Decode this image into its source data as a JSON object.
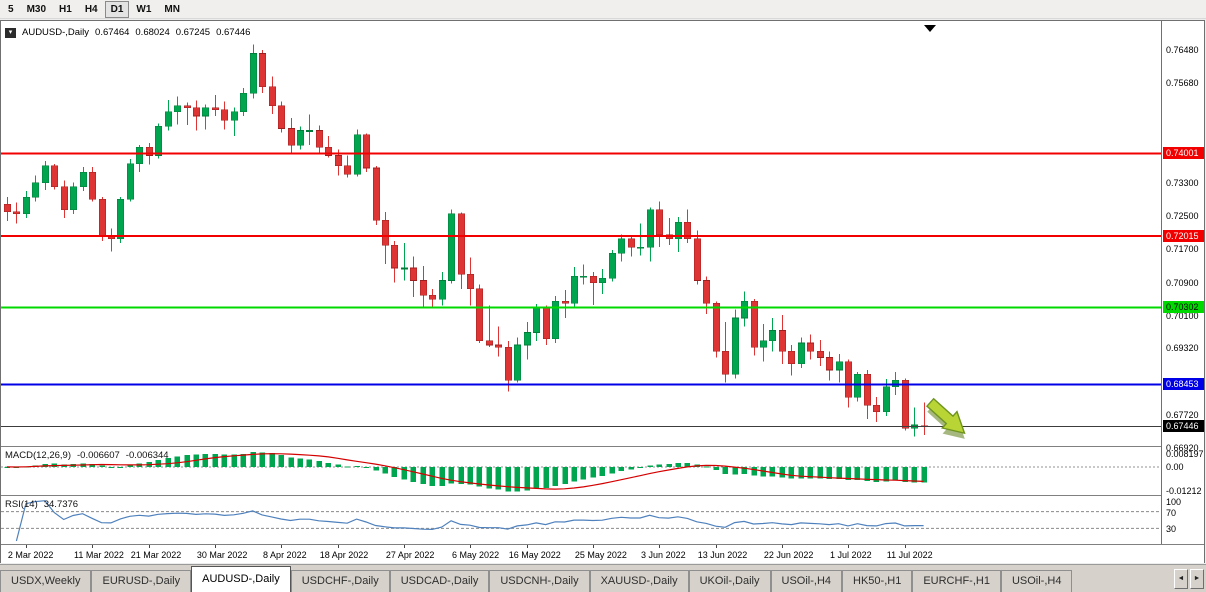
{
  "toolbar": {
    "timeframes": [
      "5",
      "M30",
      "H1",
      "H4",
      "D1",
      "W1",
      "MN"
    ],
    "active_timeframe": "D1"
  },
  "chart_header": {
    "dropdown_icon": "▾",
    "symbol_label": "AUDUSD-,Daily",
    "ohlc": [
      "0.67464",
      "0.68024",
      "0.67245",
      "0.67446"
    ]
  },
  "chart_data": {
    "type": "candlestick",
    "symbol": "AUDUSD",
    "timeframe": "Daily",
    "title": "AUDUSD-,Daily",
    "ylim": [
      0.67,
      0.7718
    ],
    "price_axis_ticks": [
      "0.76480",
      "0.75680",
      "0.73300",
      "0.72500",
      "0.71700",
      "0.70900",
      "0.70100",
      "0.69320",
      "0.67720",
      "0.66920"
    ],
    "hlines": [
      {
        "price": 0.74001,
        "label": "0.74001",
        "color": "#f20000",
        "text_color": "#ffffff"
      },
      {
        "price": 0.72015,
        "label": "0.72015",
        "color": "#f20000",
        "text_color": "#ffffff"
      },
      {
        "price": 0.70302,
        "label": "0.70302",
        "color": "#00d900",
        "text_color": "#000000"
      },
      {
        "price": 0.68453,
        "label": "0.68453",
        "color": "#0000e6",
        "text_color": "#ffffff"
      }
    ],
    "current_price": {
      "value": 0.67446,
      "label": "0.67446",
      "color": "#000000"
    },
    "colors": {
      "up": "#00a64f",
      "up_border": "#027a3a",
      "down": "#df3434",
      "down_border": "#9c1f1f"
    },
    "annotations": [
      {
        "type": "arrow",
        "direction": "down-right",
        "color": "#b8d435",
        "outline": "#6f9420",
        "near_price": 0.678
      }
    ],
    "date_labels": [
      {
        "label": "2 Mar 2022",
        "i": 2
      },
      {
        "label": "11 Mar 2022",
        "i": 9
      },
      {
        "label": "21 Mar 2022",
        "i": 15
      },
      {
        "label": "30 Mar 2022",
        "i": 22
      },
      {
        "label": "8 Apr 2022",
        "i": 29
      },
      {
        "label": "18 Apr 2022",
        "i": 35
      },
      {
        "label": "27 Apr 2022",
        "i": 42
      },
      {
        "label": "6 May 2022",
        "i": 49
      },
      {
        "label": "16 May 2022",
        "i": 55
      },
      {
        "label": "25 May 2022",
        "i": 62
      },
      {
        "label": "3 Jun 2022",
        "i": 69
      },
      {
        "label": "13 Jun 2022",
        "i": 75
      },
      {
        "label": "22 Jun 2022",
        "i": 82
      },
      {
        "label": "1 Jul 2022",
        "i": 89
      },
      {
        "label": "11 Jul 2022",
        "i": 95
      }
    ],
    "candles": [
      [
        0.7278,
        0.7295,
        0.7238,
        0.726
      ],
      [
        0.726,
        0.7282,
        0.7232,
        0.7255
      ],
      [
        0.7255,
        0.731,
        0.7245,
        0.7295
      ],
      [
        0.7295,
        0.7347,
        0.7285,
        0.733
      ],
      [
        0.733,
        0.7382,
        0.7312,
        0.737
      ],
      [
        0.737,
        0.7375,
        0.7313,
        0.732
      ],
      [
        0.732,
        0.7335,
        0.7245,
        0.7265
      ],
      [
        0.7265,
        0.733,
        0.7255,
        0.732
      ],
      [
        0.732,
        0.7368,
        0.731,
        0.7355
      ],
      [
        0.7355,
        0.7367,
        0.7285,
        0.729
      ],
      [
        0.729,
        0.7295,
        0.719,
        0.72
      ],
      [
        0.72,
        0.722,
        0.7165,
        0.7195
      ],
      [
        0.7195,
        0.7295,
        0.7185,
        0.729
      ],
      [
        0.729,
        0.7387,
        0.7285,
        0.7375
      ],
      [
        0.7375,
        0.742,
        0.7355,
        0.7415
      ],
      [
        0.7415,
        0.7425,
        0.7373,
        0.7395
      ],
      [
        0.7395,
        0.7472,
        0.7388,
        0.7465
      ],
      [
        0.7465,
        0.7528,
        0.7455,
        0.75
      ],
      [
        0.75,
        0.7537,
        0.747,
        0.7515
      ],
      [
        0.7515,
        0.7522,
        0.7468,
        0.751
      ],
      [
        0.751,
        0.7527,
        0.7455,
        0.749
      ],
      [
        0.749,
        0.7518,
        0.7458,
        0.751
      ],
      [
        0.751,
        0.754,
        0.749,
        0.7505
      ],
      [
        0.7505,
        0.7525,
        0.7458,
        0.748
      ],
      [
        0.748,
        0.751,
        0.7442,
        0.75
      ],
      [
        0.75,
        0.7557,
        0.749,
        0.7545
      ],
      [
        0.7545,
        0.7661,
        0.7532,
        0.764
      ],
      [
        0.764,
        0.7648,
        0.7545,
        0.756
      ],
      [
        0.756,
        0.7585,
        0.7495,
        0.7515
      ],
      [
        0.7515,
        0.7525,
        0.745,
        0.746
      ],
      [
        0.746,
        0.7485,
        0.74,
        0.742
      ],
      [
        0.742,
        0.7465,
        0.741,
        0.7455
      ],
      [
        0.7455,
        0.7493,
        0.742,
        0.7455
      ],
      [
        0.7455,
        0.7467,
        0.7398,
        0.7415
      ],
      [
        0.7415,
        0.7442,
        0.739,
        0.7395
      ],
      [
        0.7395,
        0.741,
        0.7347,
        0.737
      ],
      [
        0.737,
        0.7395,
        0.7342,
        0.735
      ],
      [
        0.735,
        0.7458,
        0.7345,
        0.7445
      ],
      [
        0.7445,
        0.7448,
        0.7355,
        0.7365
      ],
      [
        0.7365,
        0.737,
        0.7228,
        0.724
      ],
      [
        0.724,
        0.726,
        0.7135,
        0.718
      ],
      [
        0.718,
        0.719,
        0.709,
        0.7125
      ],
      [
        0.7125,
        0.7185,
        0.7095,
        0.7125
      ],
      [
        0.7125,
        0.7152,
        0.7055,
        0.7095
      ],
      [
        0.7095,
        0.713,
        0.703,
        0.706
      ],
      [
        0.706,
        0.7075,
        0.7028,
        0.705
      ],
      [
        0.705,
        0.7115,
        0.7035,
        0.7095
      ],
      [
        0.7095,
        0.7266,
        0.7088,
        0.7255
      ],
      [
        0.7255,
        0.7258,
        0.7075,
        0.711
      ],
      [
        0.711,
        0.715,
        0.7035,
        0.7075
      ],
      [
        0.7075,
        0.7085,
        0.6945,
        0.695
      ],
      [
        0.695,
        0.7035,
        0.6935,
        0.694
      ],
      [
        0.694,
        0.6985,
        0.6912,
        0.6935
      ],
      [
        0.6935,
        0.695,
        0.6829,
        0.6855
      ],
      [
        0.6855,
        0.6958,
        0.685,
        0.694
      ],
      [
        0.694,
        0.6995,
        0.6905,
        0.697
      ],
      [
        0.697,
        0.7038,
        0.695,
        0.703
      ],
      [
        0.703,
        0.7035,
        0.694,
        0.6955
      ],
      [
        0.6955,
        0.7058,
        0.6945,
        0.7045
      ],
      [
        0.7045,
        0.7072,
        0.7005,
        0.704
      ],
      [
        0.704,
        0.7127,
        0.703,
        0.7105
      ],
      [
        0.7105,
        0.7133,
        0.7085,
        0.7105
      ],
      [
        0.7105,
        0.7115,
        0.7036,
        0.709
      ],
      [
        0.709,
        0.7122,
        0.7062,
        0.71
      ],
      [
        0.71,
        0.7168,
        0.7092,
        0.716
      ],
      [
        0.716,
        0.7205,
        0.714,
        0.7195
      ],
      [
        0.7195,
        0.7203,
        0.7152,
        0.7175
      ],
      [
        0.7175,
        0.7232,
        0.7155,
        0.7175
      ],
      [
        0.7175,
        0.727,
        0.714,
        0.7265
      ],
      [
        0.7265,
        0.7285,
        0.7175,
        0.7205
      ],
      [
        0.7205,
        0.7245,
        0.718,
        0.7195
      ],
      [
        0.7195,
        0.7248,
        0.7163,
        0.7235
      ],
      [
        0.7235,
        0.7265,
        0.7185,
        0.7195
      ],
      [
        0.7195,
        0.7215,
        0.7085,
        0.7095
      ],
      [
        0.7095,
        0.7105,
        0.7015,
        0.704
      ],
      [
        0.704,
        0.7045,
        0.691,
        0.6925
      ],
      [
        0.6925,
        0.6995,
        0.685,
        0.687
      ],
      [
        0.687,
        0.7025,
        0.686,
        0.7005
      ],
      [
        0.7005,
        0.7069,
        0.6985,
        0.7045
      ],
      [
        0.7045,
        0.705,
        0.6915,
        0.6935
      ],
      [
        0.6935,
        0.699,
        0.69,
        0.695
      ],
      [
        0.695,
        0.7005,
        0.6925,
        0.6975
      ],
      [
        0.6975,
        0.7012,
        0.6895,
        0.6925
      ],
      [
        0.6925,
        0.694,
        0.6867,
        0.6895
      ],
      [
        0.6895,
        0.6958,
        0.6885,
        0.6945
      ],
      [
        0.6945,
        0.6965,
        0.6905,
        0.6925
      ],
      [
        0.6925,
        0.6952,
        0.689,
        0.691
      ],
      [
        0.691,
        0.6925,
        0.6855,
        0.688
      ],
      [
        0.688,
        0.6918,
        0.685,
        0.69
      ],
      [
        0.69,
        0.6905,
        0.679,
        0.6815
      ],
      [
        0.6815,
        0.6875,
        0.6805,
        0.687
      ],
      [
        0.687,
        0.688,
        0.6762,
        0.6795
      ],
      [
        0.6795,
        0.6815,
        0.6755,
        0.678
      ],
      [
        0.678,
        0.6858,
        0.677,
        0.684
      ],
      [
        0.684,
        0.6875,
        0.682,
        0.6855
      ],
      [
        0.6855,
        0.686,
        0.6735,
        0.674
      ],
      [
        0.674,
        0.679,
        0.672,
        0.6748
      ],
      [
        0.67464,
        0.68024,
        0.67245,
        0.67446
      ]
    ]
  },
  "macd": {
    "label": "MACD(12,26,9)",
    "values": [
      "-0.006607",
      "-0.006344"
    ],
    "axis": [
      "0.008197",
      "0.00",
      "-0.01212"
    ],
    "params": {
      "fast": 12,
      "slow": 26,
      "signal": 9
    },
    "colors": {
      "hist": "#00a64f",
      "signal": "#d40000"
    }
  },
  "rsi": {
    "label": "RSI(14)",
    "value": "34.7376",
    "period": 14,
    "axis": [
      "100",
      "70",
      "30"
    ],
    "levels": [
      70,
      30
    ],
    "color": "#4f81bd"
  },
  "tabs": {
    "items": [
      "USDX,Weekly",
      "EURUSD-,Daily",
      "AUDUSD-,Daily",
      "USDCHF-,Daily",
      "USDCAD-,Daily",
      "USDCNH-,Daily",
      "XAUUSD-,Daily",
      "UKOil-,Daily",
      "USOil-,H4",
      "HK50-,H1",
      "EURCHF-,H1",
      "USOil-,H4"
    ],
    "active": "AUDUSD-,Daily",
    "icon_left": "◄",
    "icon_right": "►"
  }
}
